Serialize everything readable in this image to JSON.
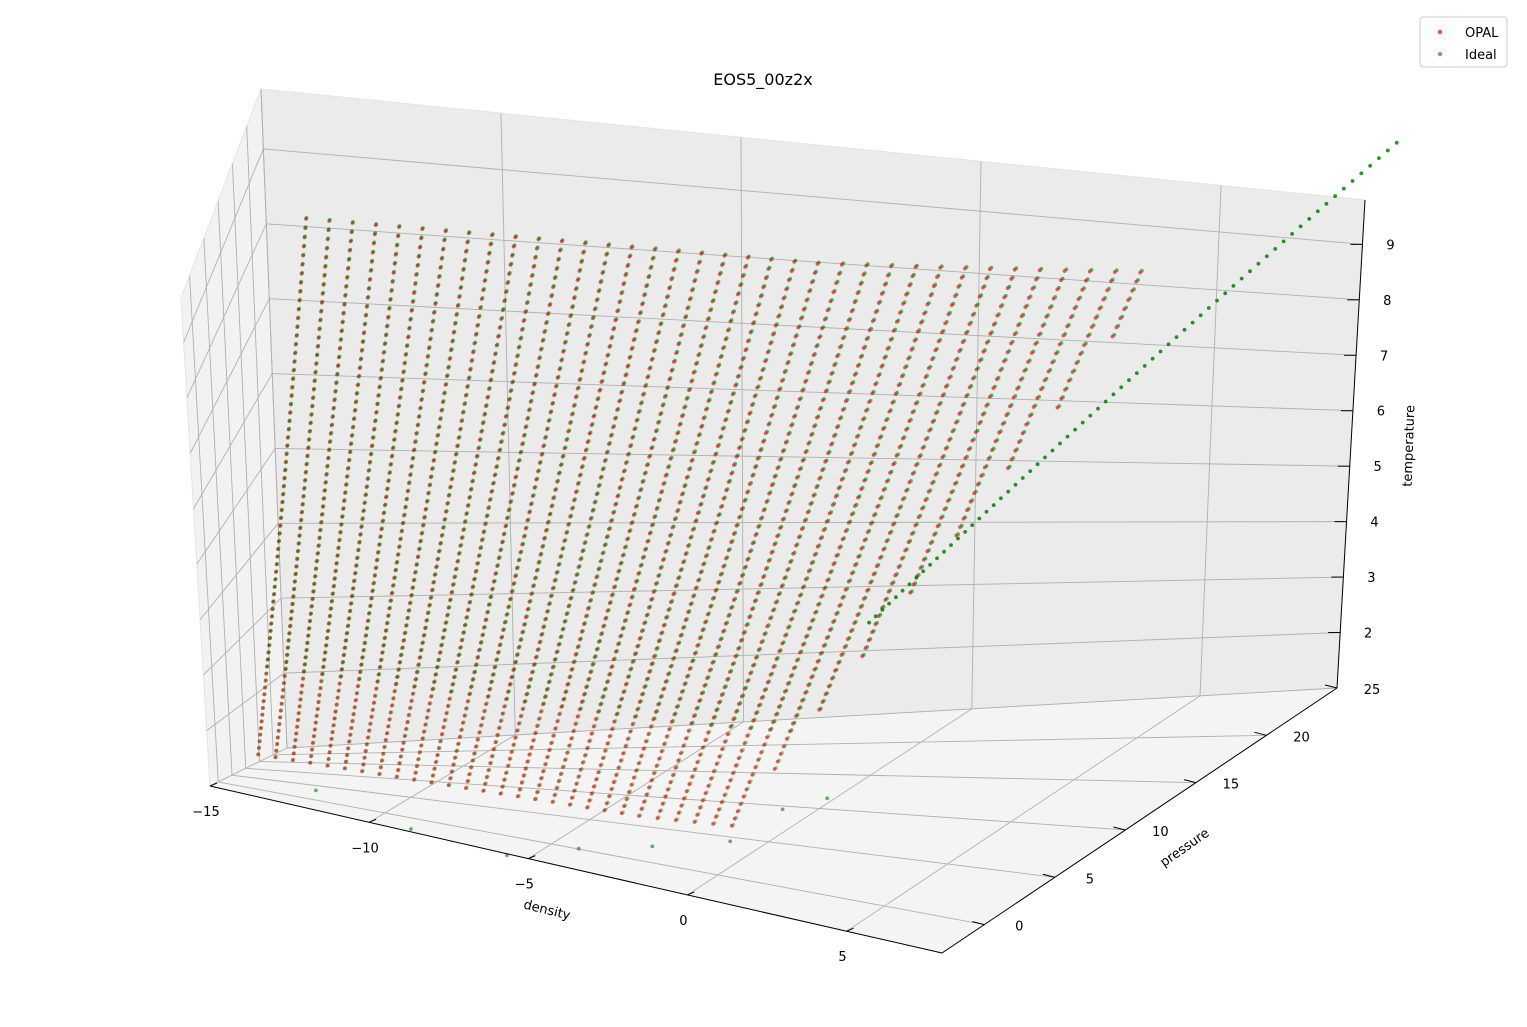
{
  "chart_data": {
    "type": "scatter3d",
    "title": "EOS5_00z2x",
    "xlabel": "density",
    "ylabel": "pressure",
    "zlabel": "temperature",
    "xlim": [
      -15,
      8
    ],
    "ylim": [
      -3,
      25
    ],
    "zlim": [
      1,
      9.8
    ],
    "x_ticks": [
      "−15",
      "−10",
      "−5",
      "0",
      "5"
    ],
    "y_ticks": [
      "0",
      "5",
      "10",
      "15",
      "20",
      "25"
    ],
    "z_ticks": [
      "2",
      "3",
      "4",
      "5",
      "6",
      "7",
      "8",
      "9"
    ],
    "grid": true,
    "legend_position": "top-right",
    "series": [
      {
        "name": "OPAL",
        "color": "#ff0000",
        "logT_range": [
          1.5,
          8.3
        ],
        "logRho_at_low_T": [
          -14,
          -0.5
        ],
        "logRho_at_high_T": [
          -14,
          4
        ]
      },
      {
        "name": "Ideal",
        "color": "#008000",
        "logT_range": [
          1.5,
          9.5
        ],
        "logRho_at_low_T": [
          -14,
          -0.5
        ],
        "logRho_at_high_T": [
          -14,
          7
        ]
      }
    ]
  }
}
